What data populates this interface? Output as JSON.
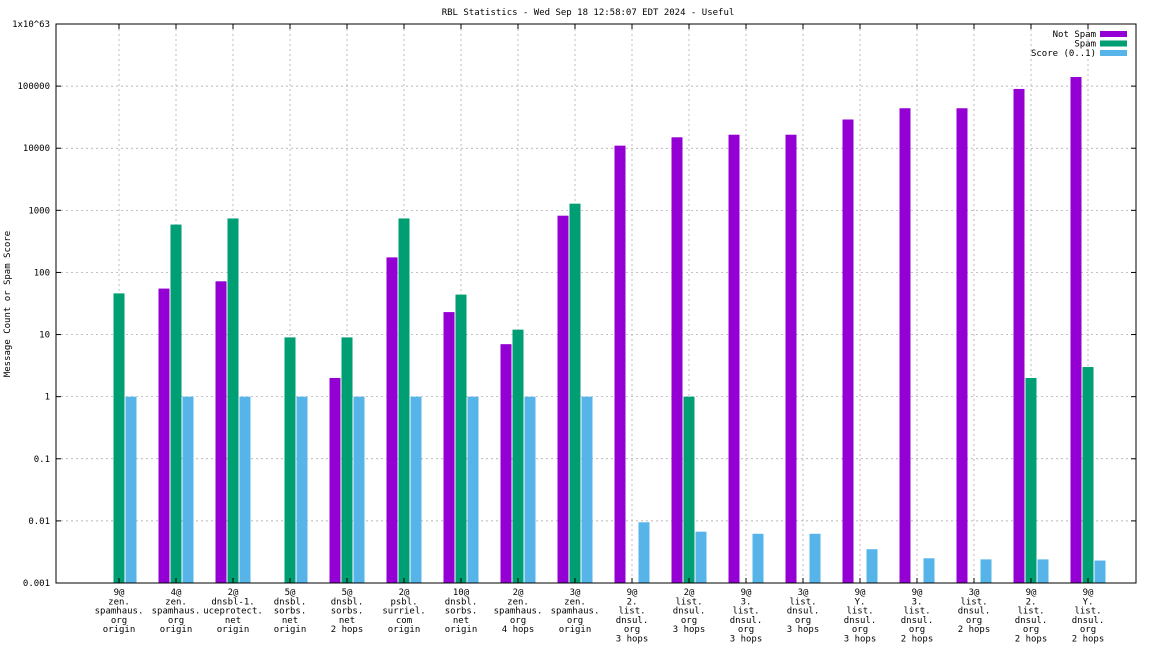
{
  "chart_data": {
    "type": "bar",
    "title": "RBL Statistics - Wed Sep 18 12:58:07 EDT 2024 - Useful",
    "ylabel": "Message Count or Spam Score",
    "xlabel": "",
    "yscale": "log",
    "ylim": [
      0.001,
      1e+63
    ],
    "yticks": [
      "0.001",
      "0.01",
      "0.1",
      "1",
      "10",
      "100",
      "1000",
      "10000",
      "100000",
      "1x10^63"
    ],
    "grid": true,
    "legend_position": "top-right",
    "categories": [
      [
        "9@",
        "zen.",
        "spamhaus.",
        "org",
        "origin"
      ],
      [
        "4@",
        "zen.",
        "spamhaus.",
        "org",
        "origin"
      ],
      [
        "2@",
        "dnsbl-1.",
        "uceprotect.",
        "net",
        "origin"
      ],
      [
        "5@",
        "dnsbl.",
        "sorbs.",
        "net",
        "origin"
      ],
      [
        "5@",
        "dnsbl.",
        "sorbs.",
        "net",
        "2 hops"
      ],
      [
        "2@",
        "psbl.",
        "surriel.",
        "com",
        "origin"
      ],
      [
        "10@",
        "dnsbl.",
        "sorbs.",
        "net",
        "origin"
      ],
      [
        "2@",
        "zen.",
        "spamhaus.",
        "org",
        "4 hops"
      ],
      [
        "3@",
        "zen.",
        "spamhaus.",
        "org",
        "origin"
      ],
      [
        "9@",
        "2.",
        "list.",
        "dnsul.",
        "org",
        "3 hops"
      ],
      [
        "2@",
        "list.",
        "dnsul.",
        "org",
        "3 hops"
      ],
      [
        "9@",
        "3.",
        "list.",
        "dnsul.",
        "org",
        "3 hops"
      ],
      [
        "3@",
        "list.",
        "dnsul.",
        "org",
        "3 hops"
      ],
      [
        "9@",
        "Y.",
        "list.",
        "dnsul.",
        "org",
        "3 hops"
      ],
      [
        "9@",
        "3.",
        "list.",
        "dnsul.",
        "org",
        "2 hops"
      ],
      [
        "3@",
        "list.",
        "dnsul.",
        "org",
        "2 hops"
      ],
      [
        "9@",
        "2.",
        "list.",
        "dnsul.",
        "org",
        "2 hops"
      ],
      [
        "9@",
        "Y.",
        "list.",
        "dnsul.",
        "org",
        "2 hops"
      ]
    ],
    "series": [
      {
        "name": "Not Spam",
        "color": "#9400d3",
        "values": [
          null,
          55,
          72,
          null,
          2,
          175,
          23,
          7,
          820,
          11000,
          15000,
          16500,
          16500,
          29000,
          44000,
          44000,
          90000,
          140000
        ]
      },
      {
        "name": "Spam",
        "color": "#009e73",
        "values": [
          46,
          590,
          740,
          9,
          9,
          740,
          44,
          12,
          1280,
          null,
          1,
          null,
          null,
          null,
          null,
          null,
          2,
          3
        ]
      },
      {
        "name": "Score (0..1)",
        "color": "#56b4e9",
        "values": [
          1,
          1,
          1,
          1,
          1,
          1,
          1,
          1,
          1,
          0.0095,
          0.0067,
          0.0062,
          0.0062,
          0.0035,
          0.0025,
          0.0024,
          0.0024,
          0.0023
        ]
      }
    ]
  }
}
